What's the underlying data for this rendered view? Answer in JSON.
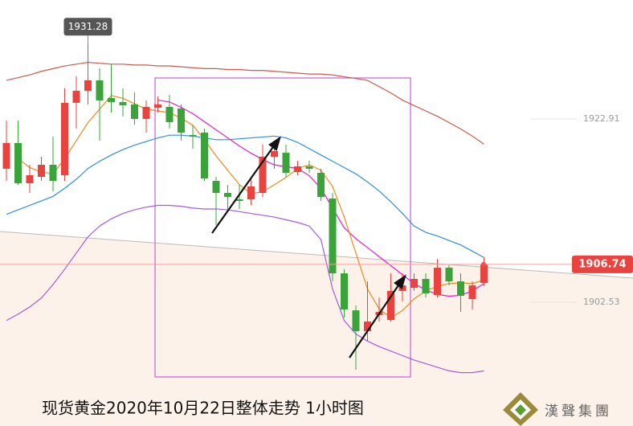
{
  "chart_data": {
    "type": "candlestick",
    "title": "现货黄金2020年10月22日整体走势 1小时图",
    "ylim": [
      1888.77,
      1936.13
    ],
    "yticks": [
      1902.53,
      1922.91
    ],
    "last_price": 1906.74,
    "high_label": 1931.28,
    "up_color": "#e8433f",
    "down_color": "#3aa43a",
    "open": [
      1917.37,
      1920.23,
      1915.76,
      1916.47,
      1917.81,
      1916.65,
      1924.7,
      1926.04,
      1927.2,
      1925.23,
      1924.79,
      1924.52,
      1922.91,
      1924.16,
      1924.25,
      1924.07,
      1921.12,
      1921.39,
      1916.02,
      1914.68,
      1913.97,
      1913.97,
      1914.68,
      1918.71,
      1919.15,
      1917.01,
      1917.63,
      1916.92,
      1914.06,
      1905.74,
      1901.63,
      1899.31,
      1901.09,
      1900.56,
      1903.78,
      1904.13,
      1905.12,
      1903.33,
      1906.37,
      1904.85,
      1902.88,
      1904.67
    ],
    "high": [
      1922.73,
      1922.73,
      1917.81,
      1918.71,
      1920.94,
      1926.31,
      1927.65,
      1931.28,
      1928.54,
      1928.99,
      1926.31,
      1925.86,
      1924.96,
      1925.41,
      1925.59,
      1924.52,
      1922.28,
      1921.84,
      1916.47,
      1915.58,
      1915.58,
      1916.47,
      1920.05,
      1920.5,
      1920.05,
      1918.26,
      1918.26,
      1917.37,
      1914.68,
      1906.19,
      1902.17,
      1904.85,
      1903.06,
      1905.74,
      1905.74,
      1905.74,
      1905.74,
      1907.35,
      1906.64,
      1905.74,
      1904.85,
      1907.53
    ],
    "low": [
      1916.02,
      1915.58,
      1914.68,
      1916.02,
      1914.86,
      1916.02,
      1921.84,
      1924.52,
      1920.5,
      1923.62,
      1923.18,
      1922.28,
      1921.39,
      1923.62,
      1921.84,
      1920.5,
      1919.6,
      1916.02,
      1911.11,
      1912.9,
      1912.9,
      1913.34,
      1914.24,
      1917.37,
      1916.47,
      1916.65,
      1916.92,
      1913.79,
      1904.85,
      1900.83,
      1895.02,
      1898.15,
      1900.38,
      1900.38,
      1902.61,
      1903.78,
      1903.06,
      1903.06,
      1904.4,
      1901.45,
      1901.72,
      1904.4
    ],
    "close": [
      1920.23,
      1915.76,
      1916.65,
      1917.81,
      1916.02,
      1924.7,
      1926.04,
      1927.2,
      1924.96,
      1924.79,
      1924.43,
      1922.91,
      1924.25,
      1924.52,
      1922.55,
      1921.39,
      1920.94,
      1916.29,
      1914.68,
      1914.24,
      1913.79,
      1915.4,
      1918.71,
      1919.33,
      1916.92,
      1917.63,
      1917.37,
      1914.24,
      1905.74,
      1901.72,
      1899.31,
      1900.38,
      1901.45,
      1903.78,
      1904.4,
      1905.12,
      1903.51,
      1906.37,
      1904.85,
      1903.24,
      1904.4,
      1906.74
    ],
    "lines": [
      {
        "color": "#cc5a4c",
        "values": [
          1927.2,
          1927.5,
          1927.8,
          1928.2,
          1928.5,
          1928.8,
          1929.0,
          1929.2,
          1929.1,
          1929.0,
          1929.0,
          1928.9,
          1928.9,
          1928.8,
          1928.8,
          1928.7,
          1928.6,
          1928.5,
          1928.5,
          1928.4,
          1928.4,
          1928.3,
          1928.3,
          1928.2,
          1928.1,
          1928.0,
          1927.9,
          1927.9,
          1927.8,
          1927.6,
          1927.4,
          1927.2,
          1926.5,
          1925.8,
          1925.0,
          1924.4,
          1923.8,
          1923.2,
          1922.5,
          1921.8,
          1921.0,
          1920.1
        ]
      },
      {
        "color": "#2f8fe0",
        "values": [
          1912.3,
          1912.8,
          1913.3,
          1913.8,
          1914.3,
          1915.2,
          1916.2,
          1917.4,
          1918.2,
          1918.9,
          1919.5,
          1920.0,
          1920.4,
          1920.8,
          1921.1,
          1921.1,
          1921.0,
          1920.8,
          1920.6,
          1920.6,
          1920.7,
          1920.8,
          1920.9,
          1921.0,
          1920.8,
          1920.3,
          1919.6,
          1918.9,
          1918.2,
          1917.5,
          1916.8,
          1915.9,
          1914.9,
          1913.7,
          1912.4,
          1911.0,
          1910.3,
          1909.9,
          1909.4,
          1908.9,
          1908.2,
          1907.5
        ]
      },
      {
        "color": "#a45be0",
        "values": [
          1900.5,
          1901.2,
          1902.0,
          1903.0,
          1904.5,
          1906.2,
          1908.0,
          1909.8,
          1911.0,
          1911.8,
          1912.4,
          1912.8,
          1913.1,
          1913.3,
          1913.3,
          1913.2,
          1913.0,
          1912.9,
          1912.9,
          1912.8,
          1912.6,
          1912.4,
          1912.2,
          1912.0,
          1911.7,
          1911.4,
          1911.0,
          1909.5,
          1904.0,
          1900.5,
          1899.0,
          1898.2,
          1897.6,
          1897.1,
          1896.6,
          1896.1,
          1895.7,
          1895.3,
          1894.9,
          1894.7,
          1894.7,
          1894.9
        ]
      },
      {
        "color": "#e020d0",
        "values": [
          null,
          null,
          null,
          null,
          null,
          null,
          null,
          null,
          null,
          null,
          null,
          null,
          null,
          1925.0,
          1924.8,
          1924.2,
          1923.5,
          1922.6,
          1921.7,
          1920.8,
          1919.9,
          1919.1,
          1918.4,
          1917.8,
          1917.6,
          1917.4,
          1916.6,
          1915.2,
          1913.0,
          1910.8,
          1909.6,
          1908.6,
          1907.6,
          1906.6,
          1905.6,
          1904.6,
          1903.9,
          1903.4,
          1903.2,
          1903.3,
          1903.8,
          1904.6
        ]
      },
      {
        "color": "#f08a1c",
        "values": [
          null,
          1918.5,
          1917.5,
          1917.0,
          1916.8,
          1918.5,
          1920.5,
          1922.5,
          1924.0,
          1925.5,
          1925.2,
          1924.6,
          1924.0,
          1923.8,
          1923.6,
          1923.0,
          1922.2,
          1920.6,
          1918.8,
          1917.2,
          1915.6,
          1914.6,
          1914.8,
          1915.6,
          1916.4,
          1917.4,
          1917.8,
          1917.2,
          1915.4,
          1912.0,
          1908.0,
          1904.0,
          1901.8,
          1900.8,
          1901.6,
          1902.9,
          1903.8,
          1904.3,
          1904.6,
          1904.7,
          1904.6,
          1905.0
        ]
      }
    ]
  },
  "logo": {
    "text": "漢聲集團"
  }
}
